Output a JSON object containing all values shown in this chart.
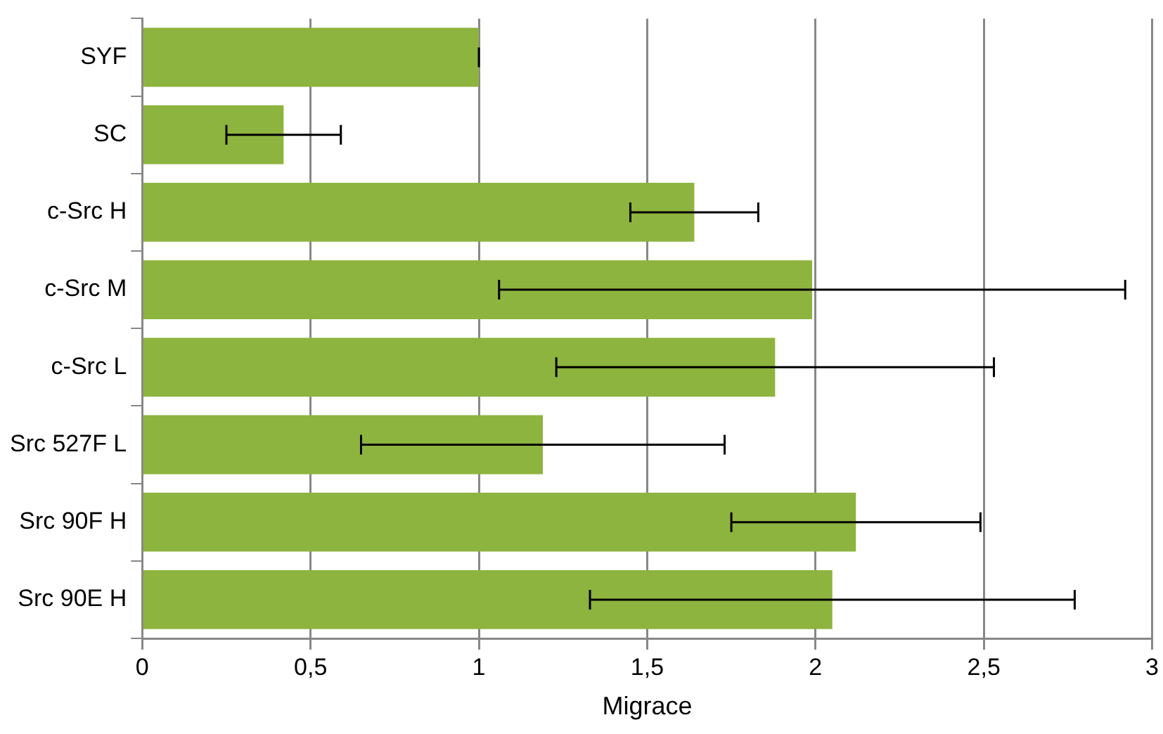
{
  "chart_data": {
    "type": "bar",
    "orientation": "horizontal",
    "xlabel": "Migrace",
    "categories": [
      "SYF",
      "SC",
      "c-Src H",
      "c-Src M",
      "c-Src L",
      "Src 527F L",
      "Src 90F H",
      "Src 90E H"
    ],
    "values": [
      1.0,
      0.42,
      1.64,
      1.99,
      1.88,
      1.19,
      2.12,
      2.05
    ],
    "errors": [
      0,
      0.17,
      0.19,
      0.93,
      0.65,
      0.54,
      0.37,
      0.72
    ],
    "color": "#8db43f",
    "xlim": [
      0,
      3
    ],
    "xticks": [
      0,
      {
        "value": 0.5,
        "label": "0,5"
      },
      1,
      {
        "value": 1.5,
        "label": "1,5"
      },
      2,
      {
        "value": 2.5,
        "label": "2,5"
      },
      3
    ],
    "grid": "x",
    "legend": false
  }
}
